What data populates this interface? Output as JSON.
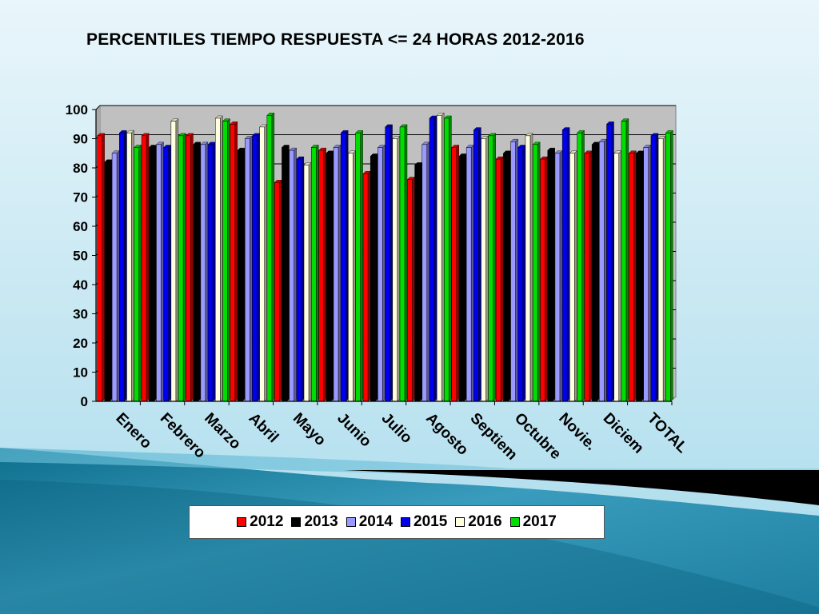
{
  "chart_data": {
    "type": "bar",
    "title": "PERCENTILES TIEMPO RESPUESTA <= 24 HORAS 2012-2016",
    "categories": [
      "Enero",
      "Febrero",
      "Marzo",
      "Abril",
      "Mayo",
      "Junio",
      "Julio",
      "Agosto",
      "Septiem",
      "Octubre",
      "Novie.",
      "Diciem",
      "TOTAL"
    ],
    "yticks": [
      "0",
      "10",
      "20",
      "30",
      "40",
      "50",
      "60",
      "70",
      "80",
      "90",
      "100"
    ],
    "ylim": [
      0,
      100
    ],
    "grid": true,
    "legend_position": "bottom",
    "series": [
      {
        "name": "2012",
        "color": "#ff0000",
        "values": [
          91,
          91,
          91,
          95,
          75,
          86,
          78,
          76,
          87,
          83,
          83,
          85,
          85
        ]
      },
      {
        "name": "2013",
        "color": "#000000",
        "values": [
          82,
          87,
          88,
          86,
          87,
          85,
          84,
          81,
          84,
          85,
          86,
          88,
          85
        ]
      },
      {
        "name": "2014",
        "color": "#9999ff",
        "values": [
          85,
          88,
          88,
          90,
          86,
          87,
          87,
          88,
          87,
          89,
          85,
          89,
          87
        ]
      },
      {
        "name": "2015",
        "color": "#0000ee",
        "values": [
          92,
          87,
          88,
          91,
          83,
          92,
          94,
          97,
          93,
          87,
          93,
          95,
          91
        ]
      },
      {
        "name": "2016",
        "color": "#ffffe0",
        "values": [
          92,
          96,
          97,
          94,
          81,
          85,
          90,
          98,
          90,
          91,
          85,
          85,
          90
        ]
      },
      {
        "name": "2017",
        "color": "#00dd00",
        "values": [
          87,
          91,
          96,
          98,
          87,
          92,
          94,
          97,
          91,
          88,
          92,
          96,
          92
        ]
      }
    ]
  }
}
